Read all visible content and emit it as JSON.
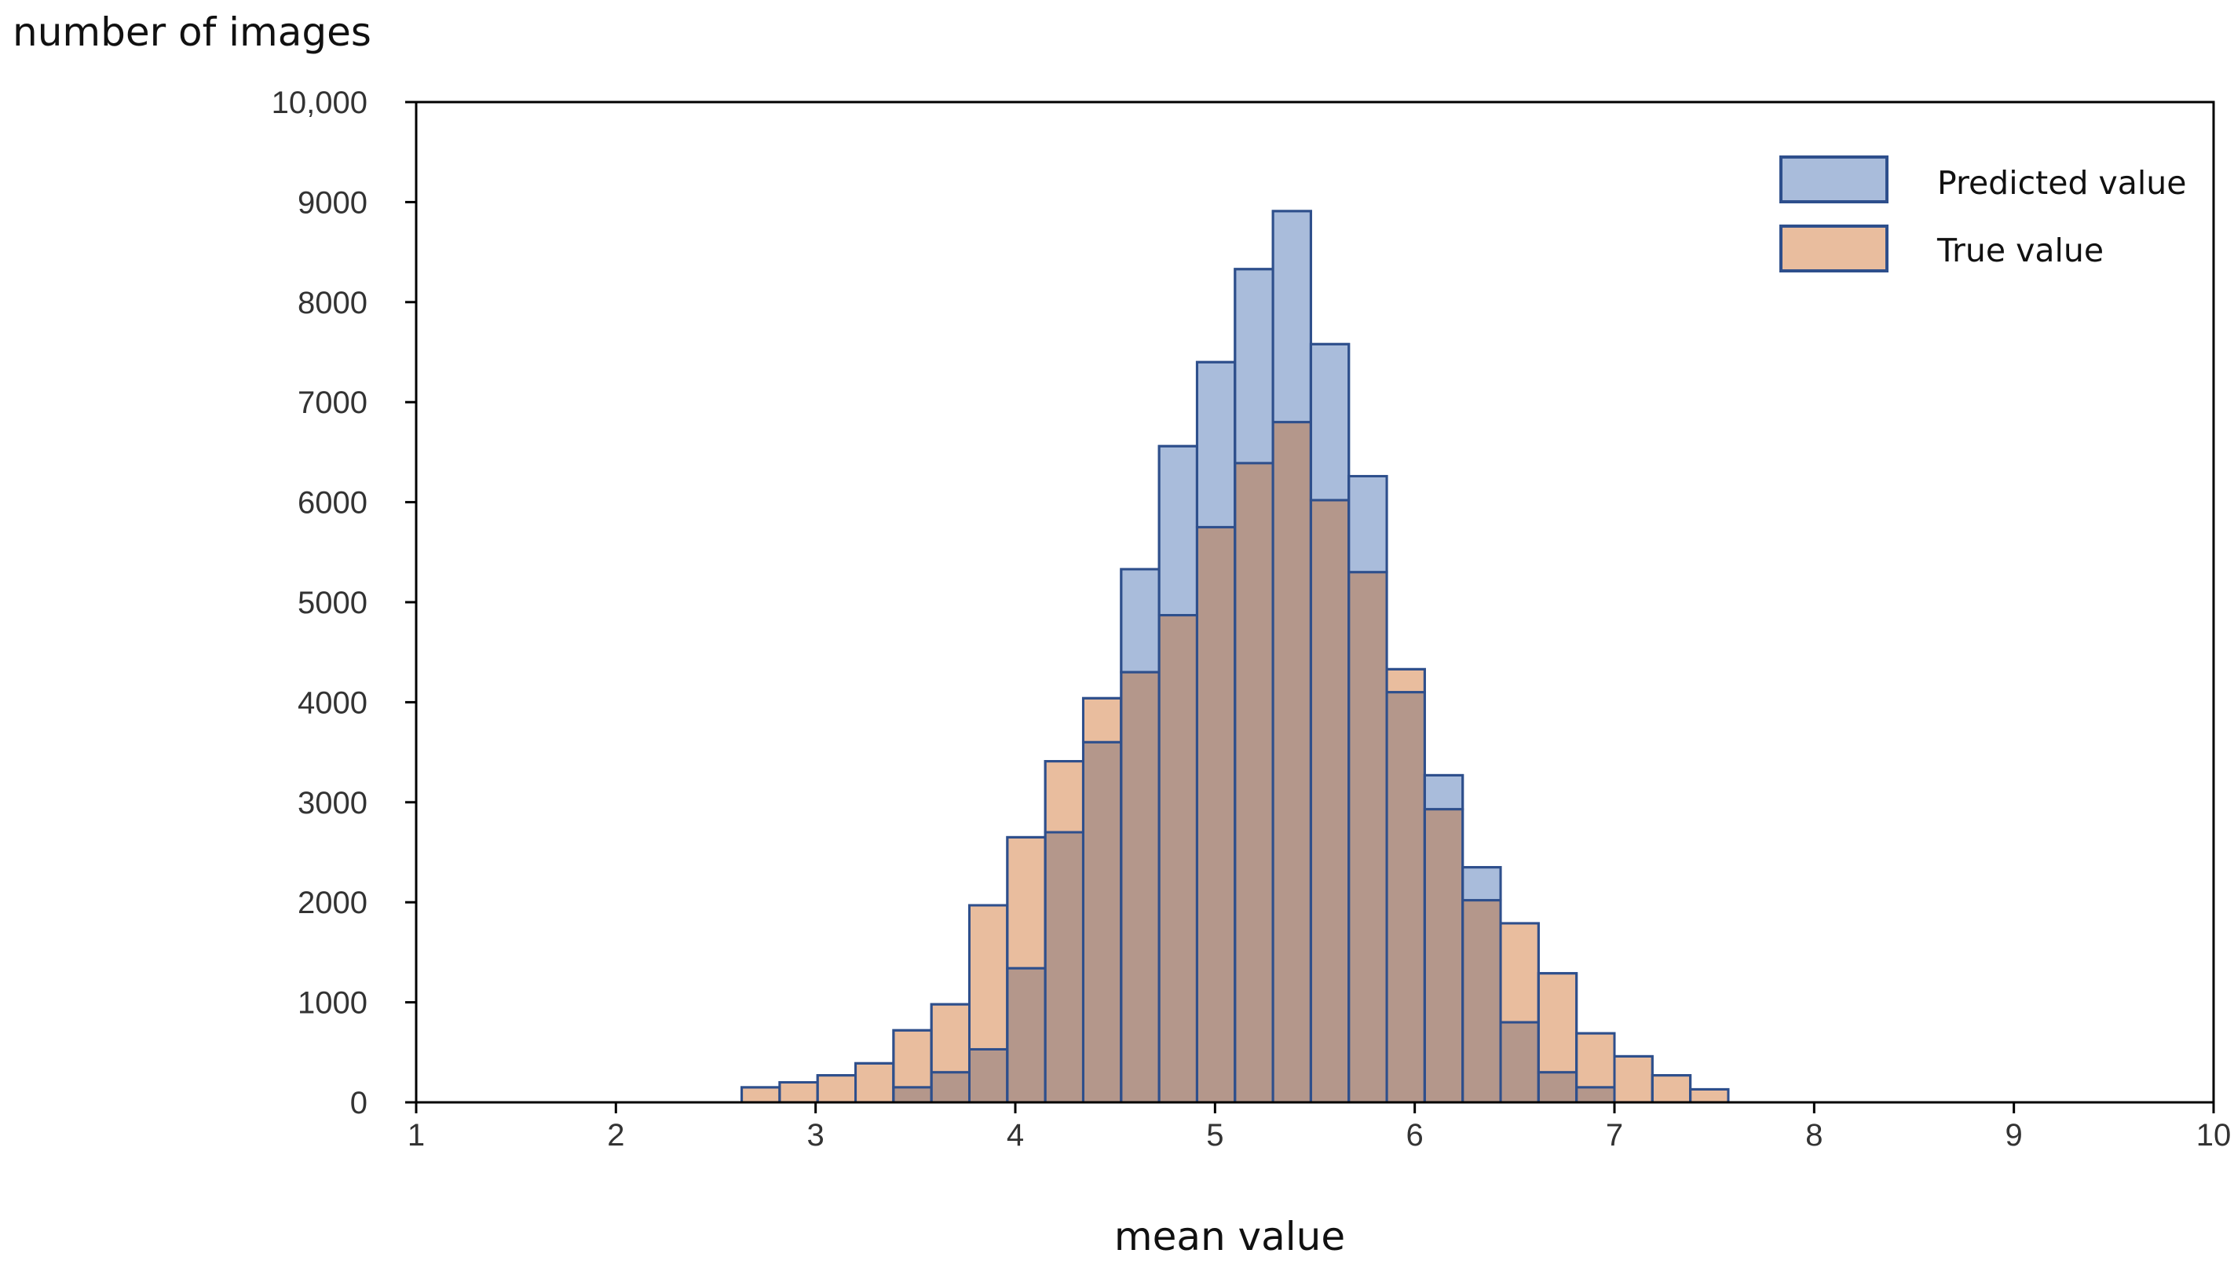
{
  "colors": {
    "predicted_fill": "#a9bcdb",
    "true_fill": "#e9bd9e",
    "overlap_fill": "#b4978b",
    "bar_edge": "#2e4f8c",
    "axis": "#000000"
  },
  "chart_data": {
    "type": "bar",
    "subtype": "overlaid histogram",
    "xlabel": "mean value",
    "ylabel": "number of images",
    "xlim": [
      1,
      10
    ],
    "ylim": [
      0,
      10000
    ],
    "x_ticks": [
      1,
      2,
      3,
      4,
      5,
      6,
      7,
      8,
      9,
      10
    ],
    "x_tick_labels": [
      "1",
      "2",
      "3",
      "4",
      "5",
      "6",
      "7",
      "8",
      "9",
      "10"
    ],
    "y_ticks": [
      0,
      1000,
      2000,
      3000,
      4000,
      5000,
      6000,
      7000,
      8000,
      9000,
      10000
    ],
    "y_tick_labels": [
      "0",
      "1000",
      "2000",
      "3000",
      "4000",
      "5000",
      "6000",
      "7000",
      "8000",
      "9000",
      "10,000"
    ],
    "bin_width": 0.19,
    "bin_starts": [
      2.63,
      2.82,
      3.01,
      3.2,
      3.39,
      3.58,
      3.77,
      3.96,
      4.15,
      4.34,
      4.53,
      4.72,
      4.91,
      5.1,
      5.29,
      5.48,
      5.67,
      5.86,
      6.05,
      6.24,
      6.43,
      6.62,
      6.81,
      7.0,
      7.19,
      7.38
    ],
    "legend": {
      "position": "top-right"
    },
    "series": [
      {
        "name": "Predicted value",
        "values": [
          0,
          0,
          0,
          0,
          150,
          300,
          530,
          1340,
          2700,
          3600,
          4300,
          4870,
          5750,
          6390,
          6800,
          6020,
          5300,
          4100,
          2930,
          2020,
          800,
          300,
          150,
          0,
          0,
          0
        ],
        "hidden_top_values": [
          null,
          null,
          null,
          null,
          null,
          null,
          null,
          null,
          null,
          null,
          5330,
          6560,
          7400,
          8330,
          8910,
          7580,
          6260,
          null,
          3270,
          2350,
          null,
          null,
          null,
          null,
          null,
          null
        ]
      },
      {
        "name": "True value",
        "values": [
          150,
          200,
          270,
          390,
          720,
          980,
          1970,
          2650,
          3410,
          4040,
          4300,
          4870,
          5750,
          6390,
          6800,
          6020,
          5300,
          4330,
          2930,
          2020,
          1790,
          1290,
          690,
          460,
          270,
          130
        ]
      }
    ]
  }
}
